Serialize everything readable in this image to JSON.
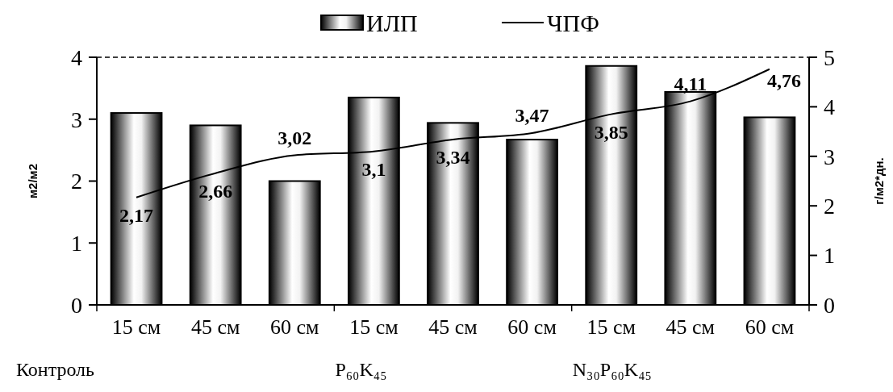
{
  "chart_data": {
    "type": "bar",
    "categories": [
      "15 см",
      "45 см",
      "60 см",
      "15 см",
      "45 см",
      "60 см",
      "15 см",
      "45 см",
      "60 см"
    ],
    "series": [
      {
        "name": "ИЛП",
        "color": "#000000",
        "values": [
          3.1,
          2.9,
          2.0,
          3.35,
          2.94,
          2.67,
          3.86,
          3.44,
          3.03
        ]
      },
      {
        "name": "ЧПФ",
        "type": "line",
        "axis": "y2",
        "color": "#000000",
        "values": [
          2.17,
          2.66,
          3.02,
          3.1,
          3.34,
          3.47,
          3.85,
          4.11,
          4.76
        ],
        "value_labels": [
          "2,17",
          "2,66",
          "3,02",
          "3,1",
          "3,34",
          "3,47",
          "3,85",
          "4,11",
          "4,76"
        ]
      }
    ],
    "ylabel": "м2/м2",
    "y2label": "г/м2*дн.",
    "ylim": [
      0,
      4
    ],
    "yticks": [
      0,
      1,
      2,
      3,
      4
    ],
    "y2lim": [
      0,
      5
    ],
    "y2ticks": [
      0,
      1,
      2,
      3,
      4,
      5
    ],
    "annotations": [
      "Контроль",
      "P₆₀K₄₅",
      "N₃₀P₆₀K₄₅"
    ],
    "legend": "top",
    "grid": false,
    "line_style": "solid",
    "marker": "none"
  }
}
